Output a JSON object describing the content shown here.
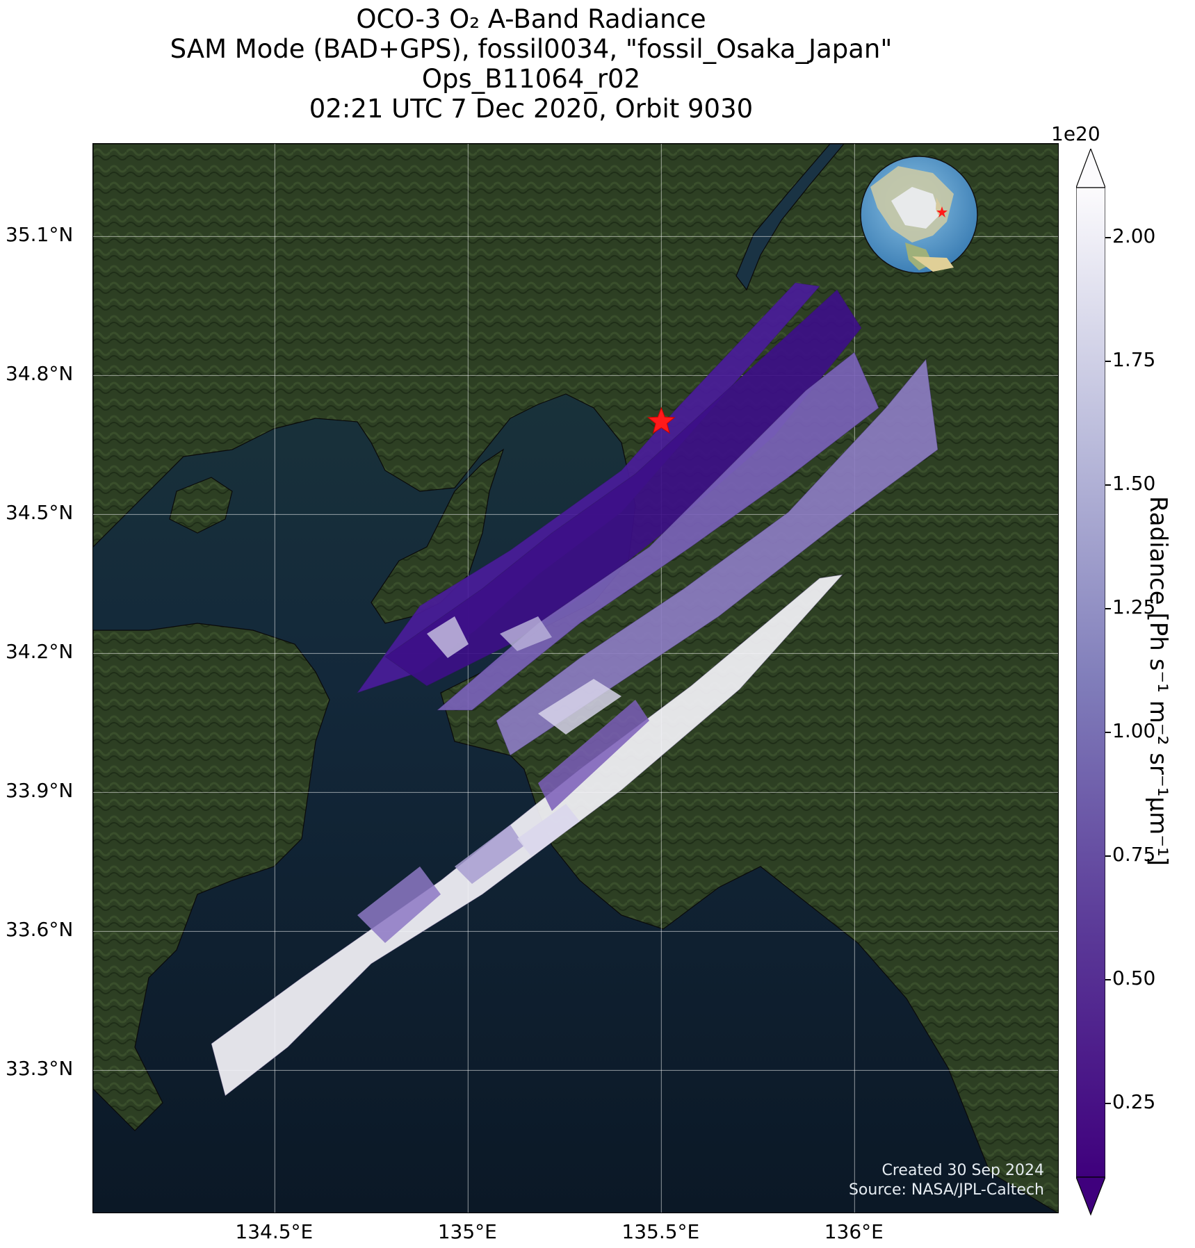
{
  "title": {
    "line1": "OCO-3 O₂ A-Band Radiance",
    "line2": "SAM Mode (BAD+GPS), fossil0034, \"fossil_Osaka_Japan\"",
    "line3": "Ops_B11064_r02",
    "line4": "02:21 UTC 7 Dec 2020, Orbit 9030"
  },
  "map": {
    "lon_range": [
      134.03,
      136.53
    ],
    "lat_range": [
      32.99,
      35.3
    ],
    "lat_ticks": [
      "35.1°N",
      "34.8°N",
      "34.5°N",
      "34.2°N",
      "33.9°N",
      "33.6°N",
      "33.3°N"
    ],
    "lat_values": [
      35.1,
      34.8,
      34.5,
      34.2,
      33.9,
      33.6,
      33.3
    ],
    "lon_ticks": [
      "134.5°E",
      "135°E",
      "135.5°E",
      "136°E"
    ],
    "lon_values": [
      134.5,
      135.0,
      135.5,
      136.0
    ],
    "target_marker": "red-star",
    "target_lon": 135.5,
    "target_lat": 34.7,
    "inset": "globe-icon-asia",
    "colors": {
      "sea": "#0f1e2e",
      "land": "#2c3d22",
      "marker": "#ff1a1a"
    }
  },
  "swaths": [
    {
      "name": "swath-1",
      "level": "mostly dark purple (~0.25–0.6), bright patches ~1.5",
      "color": "#4a1c9a"
    },
    {
      "name": "swath-2",
      "level": "dark purple (~0.2–0.5)",
      "color": "#3d0f88"
    },
    {
      "name": "swath-3",
      "level": "medium purple (~0.6–0.9)",
      "color": "#7a62b8"
    },
    {
      "name": "swath-4",
      "level": "light lavender (~0.9–1.1)",
      "color": "#8c7cc2"
    },
    {
      "name": "swath-5",
      "level": "white (~2.0) offshore, purple over land",
      "color": "#f4f3f9"
    }
  ],
  "colorbar": {
    "multiplier": "1e20",
    "label": "Radiance [Ph s⁻¹ m⁻² sr⁻¹μm⁻¹]",
    "ticks": [
      "2.00",
      "1.75",
      "1.50",
      "1.25",
      "1.00",
      "0.75",
      "0.50",
      "0.25"
    ],
    "tick_values": [
      2.0,
      1.75,
      1.5,
      1.25,
      1.0,
      0.75,
      0.5,
      0.25
    ],
    "range": [
      0.1,
      2.1
    ],
    "extend": "both",
    "colormap": "Purples_r"
  },
  "credit": {
    "line1": "Created 30 Sep 2024",
    "line2": "Source: NASA/JPL-Caltech"
  }
}
